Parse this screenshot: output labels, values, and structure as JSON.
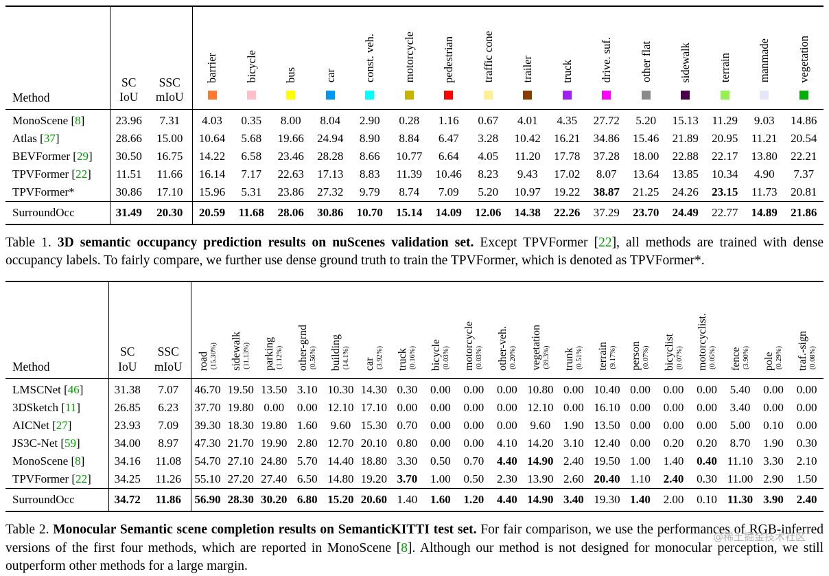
{
  "colors": {
    "citation": "#00a000",
    "watermark": "#b4b4b4"
  },
  "watermark": "@稀土掘金技术社区",
  "table1": {
    "headers": {
      "method": "Method",
      "sc": [
        "SC",
        "IoU"
      ],
      "ssc": [
        "SSC",
        "mIoU"
      ]
    },
    "classes": [
      {
        "label": "barrier",
        "color": "#ff7832"
      },
      {
        "label": "bicycle",
        "color": "#ffc0cb"
      },
      {
        "label": "bus",
        "color": "#ffff00"
      },
      {
        "label": "car",
        "color": "#0096f5"
      },
      {
        "label": "const. veh.",
        "color": "#00ffff"
      },
      {
        "label": "motorcycle",
        "color": "#c8b400"
      },
      {
        "label": "pedestrian",
        "color": "#ff0000"
      },
      {
        "label": "traffic cone",
        "color": "#fff096"
      },
      {
        "label": "trailer",
        "color": "#873c00"
      },
      {
        "label": "truck",
        "color": "#a020f0"
      },
      {
        "label": "drive. suf.",
        "color": "#ff00ff"
      },
      {
        "label": "other flat",
        "color": "#8b8989"
      },
      {
        "label": "sidewalk",
        "color": "#4b004b"
      },
      {
        "label": "terrain",
        "color": "#96f050"
      },
      {
        "label": "manmade",
        "color": "#e6e6fa"
      },
      {
        "label": "vegetation",
        "color": "#00af00"
      }
    ],
    "rows": [
      {
        "method": "MonoScene",
        "cite": "8",
        "sc": "23.96",
        "ssc": "7.31",
        "values": [
          "4.03",
          "0.35",
          "8.00",
          "8.04",
          "2.90",
          "0.28",
          "1.16",
          "0.67",
          "4.01",
          "4.35",
          "27.72",
          "5.20",
          "15.13",
          "11.29",
          "9.03",
          "14.86"
        ],
        "bold": []
      },
      {
        "method": "Atlas",
        "cite": "37",
        "sc": "28.66",
        "ssc": "15.00",
        "values": [
          "10.64",
          "5.68",
          "19.66",
          "24.94",
          "8.90",
          "8.84",
          "6.47",
          "3.28",
          "10.42",
          "16.21",
          "34.86",
          "15.46",
          "21.89",
          "20.95",
          "11.21",
          "20.54"
        ],
        "bold": []
      },
      {
        "method": "BEVFormer",
        "cite": "29",
        "sc": "30.50",
        "ssc": "16.75",
        "values": [
          "14.22",
          "6.58",
          "23.46",
          "28.28",
          "8.66",
          "10.77",
          "6.64",
          "4.05",
          "11.20",
          "17.78",
          "37.28",
          "18.00",
          "22.88",
          "22.17",
          "13.80",
          "22.21"
        ],
        "bold": []
      },
      {
        "method": "TPVFormer",
        "cite": "22",
        "sc": "11.51",
        "ssc": "11.66",
        "values": [
          "16.14",
          "7.17",
          "22.63",
          "17.13",
          "8.83",
          "11.39",
          "10.46",
          "8.23",
          "9.43",
          "17.02",
          "8.07",
          "13.64",
          "13.85",
          "10.34",
          "4.90",
          "7.37"
        ],
        "bold": []
      },
      {
        "method": "TPVFormer*",
        "sc": "30.86",
        "ssc": "17.10",
        "values": [
          "15.96",
          "5.31",
          "23.86",
          "27.32",
          "9.79",
          "8.74",
          "7.09",
          "5.20",
          "10.97",
          "19.22",
          "38.87",
          "21.25",
          "24.26",
          "23.15",
          "11.73",
          "20.81"
        ],
        "bold": [
          10,
          13
        ]
      },
      {
        "method": "SurroundOcc",
        "final": true,
        "sc": "31.49",
        "ssc": "20.30",
        "bold_sc": true,
        "bold_ssc": true,
        "values": [
          "20.59",
          "11.68",
          "28.06",
          "30.86",
          "10.70",
          "15.14",
          "14.09",
          "12.06",
          "14.38",
          "22.26",
          "37.29",
          "23.70",
          "24.49",
          "22.77",
          "14.89",
          "21.86"
        ],
        "bold": [
          0,
          1,
          2,
          3,
          4,
          5,
          6,
          7,
          8,
          9,
          11,
          12,
          14,
          15
        ]
      }
    ]
  },
  "table2": {
    "headers": {
      "method": "Method",
      "sc": [
        "SC",
        "IoU"
      ],
      "ssc": [
        "SSC",
        "mIoU"
      ]
    },
    "classes": [
      {
        "label": "road",
        "pct": "(15.30%)"
      },
      {
        "label": "sidewalk",
        "pct": "(11.13%)"
      },
      {
        "label": "parking",
        "pct": "(1.12%)"
      },
      {
        "label": "other-grnd",
        "pct": "(0.56%)"
      },
      {
        "label": "building",
        "pct": "(14.1%)"
      },
      {
        "label": "car",
        "pct": "(3.92%)"
      },
      {
        "label": "truck",
        "pct": "(0.16%)"
      },
      {
        "label": "bicycle",
        "pct": "(0.03%)"
      },
      {
        "label": "motorcycle",
        "pct": "(0.03%)"
      },
      {
        "label": "other-veh.",
        "pct": "(0.20%)"
      },
      {
        "label": "vegetation",
        "pct": "(39.3%)"
      },
      {
        "label": "trunk",
        "pct": "(0.51%)"
      },
      {
        "label": "terrain",
        "pct": "(9.17%)"
      },
      {
        "label": "person",
        "pct": "(0.07%)"
      },
      {
        "label": "bicyclist",
        "pct": "(0.07%)"
      },
      {
        "label": "motorcyclist.",
        "pct": "(0.05%)"
      },
      {
        "label": "fence",
        "pct": "(3.90%)"
      },
      {
        "label": "pole",
        "pct": "(0.29%)"
      },
      {
        "label": "traf.-sign",
        "pct": "(0.08%)"
      }
    ],
    "rows": [
      {
        "method": "LMSCNet",
        "cite": "46",
        "sc": "31.38",
        "ssc": "7.07",
        "values": [
          "46.70",
          "19.50",
          "13.50",
          "3.10",
          "10.30",
          "14.30",
          "0.30",
          "0.00",
          "0.00",
          "0.00",
          "10.80",
          "0.00",
          "10.40",
          "0.00",
          "0.00",
          "0.00",
          "5.40",
          "0.00",
          "0.00"
        ],
        "bold": []
      },
      {
        "method": "3DSketch",
        "cite": "11",
        "sc": "26.85",
        "ssc": "6.23",
        "values": [
          "37.70",
          "19.80",
          "0.00",
          "0.00",
          "12.10",
          "17.10",
          "0.00",
          "0.00",
          "0.00",
          "0.00",
          "12.10",
          "0.00",
          "16.10",
          "0.00",
          "0.00",
          "0.00",
          "3.40",
          "0.00",
          "0.00"
        ],
        "bold": []
      },
      {
        "method": "AICNet",
        "cite": "27",
        "sc": "23.93",
        "ssc": "7.09",
        "values": [
          "39.30",
          "18.30",
          "19.80",
          "1.60",
          "9.60",
          "15.30",
          "0.70",
          "0.00",
          "0.00",
          "0.00",
          "9.60",
          "1.90",
          "13.50",
          "0.00",
          "0.00",
          "0.00",
          "5.00",
          "0.10",
          "0.00"
        ],
        "bold": []
      },
      {
        "method": "JS3C-Net",
        "cite": "59",
        "sc": "34.00",
        "ssc": "8.97",
        "values": [
          "47.30",
          "21.70",
          "19.90",
          "2.80",
          "12.70",
          "20.10",
          "0.80",
          "0.00",
          "0.00",
          "4.10",
          "14.20",
          "3.10",
          "12.40",
          "0.00",
          "0.20",
          "0.20",
          "8.70",
          "1.90",
          "0.30"
        ],
        "bold": []
      },
      {
        "method": "MonoScene",
        "cite": "8",
        "sc": "34.16",
        "ssc": "11.08",
        "values": [
          "54.70",
          "27.10",
          "24.80",
          "5.70",
          "14.40",
          "18.80",
          "3.30",
          "0.50",
          "0.70",
          "4.40",
          "14.90",
          "2.40",
          "19.50",
          "1.00",
          "1.40",
          "0.40",
          "11.10",
          "3.30",
          "2.10"
        ],
        "bold": [
          9,
          10,
          15
        ]
      },
      {
        "method": "TPVFormer",
        "cite": "22",
        "sc": "34.25",
        "ssc": "11.26",
        "values": [
          "55.10",
          "27.20",
          "27.40",
          "6.50",
          "14.80",
          "19.20",
          "3.70",
          "1.00",
          "0.50",
          "2.30",
          "13.90",
          "2.60",
          "20.40",
          "1.10",
          "2.40",
          "0.30",
          "11.00",
          "2.90",
          "1.50"
        ],
        "bold": [
          6,
          12,
          14
        ]
      },
      {
        "method": "SurroundOcc",
        "final": true,
        "sc": "34.72",
        "ssc": "11.86",
        "bold_sc": true,
        "bold_ssc": true,
        "values": [
          "56.90",
          "28.30",
          "30.20",
          "6.80",
          "15.20",
          "20.60",
          "1.40",
          "1.60",
          "1.20",
          "4.40",
          "14.90",
          "3.40",
          "19.30",
          "1.40",
          "2.00",
          "0.10",
          "11.30",
          "3.90",
          "2.40"
        ],
        "bold": [
          0,
          1,
          2,
          3,
          4,
          5,
          7,
          8,
          9,
          10,
          11,
          13,
          16,
          17,
          18
        ]
      }
    ]
  },
  "captions": {
    "table1": [
      {
        "style": "normal",
        "text": "Table 1. "
      },
      {
        "style": "bold",
        "text": "3D semantic occupancy prediction results on nuScenes validation set."
      },
      {
        "style": "normal",
        "text": " Except TPVFormer ["
      },
      {
        "style": "cite",
        "text": "22"
      },
      {
        "style": "normal",
        "text": "], all methods are trained with dense occupancy labels. To fairly compare, we further use dense ground truth to train the TPVFormer, which is denoted as TPVFormer*."
      }
    ],
    "table2": [
      {
        "style": "normal",
        "text": "Table 2. "
      },
      {
        "style": "bold",
        "text": "Monocular Semantic scene completion results on SemanticKITTI test set."
      },
      {
        "style": "normal",
        "text": " For fair comparison, we use the performances of RGB-inferred versions of the first four methods, which are reported in MonoScene ["
      },
      {
        "style": "cite",
        "text": "8"
      },
      {
        "style": "normal",
        "text": "]. Although our method is not designed for monocular perception, we still outperform other methods for a large margin."
      }
    ]
  }
}
